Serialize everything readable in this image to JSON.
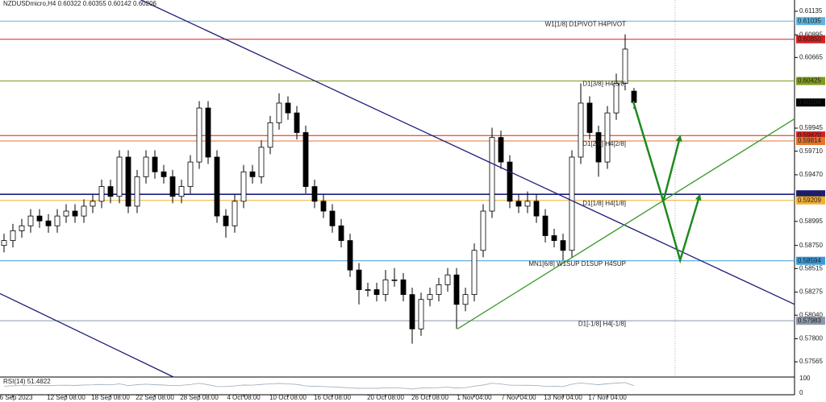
{
  "chart_data": {
    "type": "candlestick",
    "header": {
      "symbol": "NZDUSDmicro,H4"
    },
    "categories": [
      null,
      "6 Sep 2023",
      null,
      null,
      null,
      null,
      null,
      "12 Sep 08:00",
      null,
      null,
      null,
      null,
      "18 Sep 08:00",
      null,
      null,
      null,
      null,
      "22 Sep 08:00",
      null,
      null,
      null,
      null,
      "28 Sep 08:00",
      null,
      null,
      null,
      null,
      "4 Oct 08:00",
      null,
      null,
      null,
      null,
      "10 Oct 08:00",
      null,
      null,
      null,
      null,
      "16 Oct 08:00",
      null,
      null,
      null,
      null,
      null,
      "20 Oct 08:00",
      null,
      null,
      null,
      null,
      "26 Oct 08:00",
      null,
      null,
      null,
      null,
      "1 Nov 04:00",
      null,
      null,
      null,
      null,
      "7 Nov 04:00",
      null,
      null,
      null,
      null,
      "13 Nov 04:00",
      null,
      null,
      null,
      null,
      "17 Nov 04:00",
      null,
      null,
      null
    ],
    "open": [
      0.5875,
      0.588,
      0.589,
      0.5895,
      0.5905,
      0.59,
      0.5895,
      0.5905,
      0.591,
      0.5905,
      0.5915,
      0.592,
      0.5935,
      0.5925,
      0.5965,
      0.5915,
      0.5945,
      0.5965,
      0.595,
      0.5945,
      0.5925,
      0.5935,
      0.596,
      0.6015,
      0.5965,
      0.5905,
      0.5895,
      0.592,
      0.595,
      0.5945,
      0.5975,
      0.6,
      0.602,
      0.601,
      0.599,
      0.5935,
      0.592,
      0.591,
      0.5895,
      0.588,
      0.585,
      0.583,
      0.583,
      0.5825,
      0.584,
      0.584,
      0.5825,
      0.579,
      0.582,
      0.5825,
      0.5835,
      0.5845,
      0.5815,
      0.5825,
      0.587,
      0.591,
      0.5985,
      0.596,
      0.592,
      0.5915,
      0.592,
      0.5905,
      0.5885,
      0.588,
      0.587,
      0.5965,
      0.602,
      0.599,
      0.596,
      0.601,
      0.604,
      0.60322
    ],
    "high": [
      0.5887,
      0.5897,
      0.5902,
      0.5912,
      0.5912,
      0.5907,
      0.5912,
      0.5917,
      0.5917,
      0.5922,
      0.5927,
      0.5942,
      0.5942,
      0.5972,
      0.5972,
      0.5952,
      0.5972,
      0.5972,
      0.5957,
      0.5952,
      0.5942,
      0.5967,
      0.6022,
      0.6022,
      0.5972,
      0.5912,
      0.5927,
      0.5957,
      0.5957,
      0.5982,
      0.6007,
      0.603,
      0.6027,
      0.6017,
      0.5997,
      0.5942,
      0.5927,
      0.5917,
      0.5902,
      0.5887,
      0.5857,
      0.5837,
      0.5837,
      0.585,
      0.5852,
      0.5847,
      0.5832,
      0.5827,
      0.5832,
      0.5842,
      0.5852,
      0.5852,
      0.5832,
      0.5877,
      0.5917,
      0.5995,
      0.5992,
      0.5967,
      0.5927,
      0.593,
      0.5927,
      0.5912,
      0.5892,
      0.5887,
      0.5972,
      0.604,
      0.6027,
      0.5997,
      0.6017,
      0.605,
      0.609,
      0.60355
    ],
    "low": [
      0.5868,
      0.5873,
      0.5883,
      0.5888,
      0.5893,
      0.5888,
      0.5888,
      0.5898,
      0.5898,
      0.5898,
      0.5908,
      0.5913,
      0.5918,
      0.5918,
      0.5908,
      0.5908,
      0.5938,
      0.5943,
      0.5938,
      0.5918,
      0.5918,
      0.5928,
      0.5953,
      0.5958,
      0.5898,
      0.5883,
      0.5888,
      0.5913,
      0.5938,
      0.5938,
      0.5968,
      0.5993,
      0.6003,
      0.5983,
      0.5928,
      0.5913,
      0.5903,
      0.5888,
      0.5873,
      0.5843,
      0.5815,
      0.5823,
      0.5818,
      0.5818,
      0.5833,
      0.5818,
      0.5775,
      0.5783,
      0.5813,
      0.5818,
      0.5828,
      0.579,
      0.5808,
      0.5818,
      0.5863,
      0.5903,
      0.5953,
      0.5913,
      0.5908,
      0.5908,
      0.5898,
      0.5878,
      0.5873,
      0.586,
      0.5863,
      0.5958,
      0.5983,
      0.5945,
      0.5953,
      0.6003,
      0.6033,
      0.60142
    ],
    "close": [
      0.588,
      0.589,
      0.5895,
      0.5905,
      0.59,
      0.5895,
      0.5905,
      0.591,
      0.5905,
      0.5915,
      0.592,
      0.5935,
      0.5925,
      0.5965,
      0.5915,
      0.5945,
      0.5965,
      0.595,
      0.5945,
      0.5925,
      0.5935,
      0.596,
      0.6015,
      0.5965,
      0.5905,
      0.5895,
      0.592,
      0.595,
      0.5945,
      0.5975,
      0.6,
      0.602,
      0.601,
      0.599,
      0.5935,
      0.592,
      0.591,
      0.5895,
      0.588,
      0.585,
      0.583,
      0.583,
      0.5825,
      0.584,
      0.584,
      0.5825,
      0.579,
      0.582,
      0.5825,
      0.5835,
      0.5845,
      0.5815,
      0.5825,
      0.587,
      0.591,
      0.5985,
      0.596,
      0.592,
      0.5915,
      0.592,
      0.5905,
      0.5885,
      0.588,
      0.587,
      0.5965,
      0.602,
      0.599,
      0.596,
      0.601,
      0.604,
      0.6075,
      0.60206
    ],
    "ylim": [
      0.6125,
      0.5741
    ],
    "yticks": [
      0.61135,
      0.60895,
      0.60665,
      0.59945,
      {
        "value": 0.5971,
        "label": "0.59710"
      },
      {
        "value": 0.5947,
        "label": "0.59470"
      },
      0.58995,
      {
        "value": 0.5875,
        "label": "0.58750"
      },
      0.58515,
      0.58275,
      {
        "value": 0.5804,
        "label": "0.58040"
      },
      {
        "value": 0.578,
        "label": "0.57800"
      },
      0.57565
    ],
    "levels": [
      {
        "label": "W1[1/8] D1PIVOT H4PIVOT",
        "value": 0.61035,
        "color": "#5fb4e0"
      },
      {
        "value": 0.6085,
        "value_label": "0.60850",
        "color": "#d42020"
      },
      {
        "label": "D1[3/8] H4[3/8]",
        "value": 0.60425,
        "color": "#7d9b1c"
      },
      {
        "value": 0.5987,
        "value_label": "0.59870",
        "color": "#d42020"
      },
      {
        "label": "D1[2/8] H4[2/8]",
        "value": 0.59814,
        "color": "#e8742a"
      },
      {
        "value": 0.59271,
        "color": "#1c1c78"
      },
      {
        "label": "D1[1/8] H4[1/8]",
        "value": 0.59209,
        "color": "#f0b030"
      },
      {
        "label": "MN1[6/8] W1SUP D1SUP H4SUP",
        "value": 0.58594,
        "color": "#3a9ad8"
      },
      {
        "label": "D1[-1/8] H4[-1/8]",
        "value": 0.57983,
        "color": "#8c98a8"
      }
    ],
    "trendlines": [
      {
        "color": "#1c1c78",
        "points": [
          [
            15.45,
            0.6125
          ],
          [
            89.1,
            0.5815
          ]
        ]
      },
      {
        "color": "#1c1c78",
        "points": [
          [
            -0.45,
            0.5826
          ],
          [
            19.1,
            0.5741
          ]
        ]
      },
      {
        "color": "#3a9a2a",
        "points": [
          [
            51.1,
            0.579
          ],
          [
            89.1,
            0.6004
          ]
        ]
      }
    ],
    "arrows": [
      {
        "color": "#1e8a1e",
        "points": [
          [
            70.9,
            0.6022
          ],
          [
            74.3,
            0.592
          ],
          [
            76.2,
            0.5986
          ]
        ]
      },
      {
        "color": "#1e8a1e",
        "points": [
          [
            74.3,
            0.592
          ],
          [
            76.2,
            0.586
          ],
          [
            78.4,
            0.5926
          ]
        ]
      }
    ],
    "rsi": {
      "name": "RSI(14)",
      "ylim": [
        0,
        100
      ],
      "yticks": [
        100,
        0
      ],
      "values": [
        48,
        51,
        52,
        55,
        53,
        51,
        54,
        55,
        53,
        56,
        57,
        60,
        57,
        64,
        52,
        58,
        62,
        58,
        56,
        52,
        54,
        59,
        68,
        58,
        46,
        45,
        50,
        56,
        55,
        60,
        64,
        67,
        64,
        60,
        50,
        47,
        45,
        43,
        40,
        36,
        33,
        34,
        33,
        37,
        37,
        34,
        28,
        35,
        36,
        38,
        41,
        35,
        38,
        48,
        56,
        68,
        63,
        55,
        54,
        55,
        52,
        48,
        47,
        45,
        62,
        70,
        64,
        58,
        65,
        69,
        73,
        51.4822
      ]
    },
    "line_color": "#000000"
  }
}
